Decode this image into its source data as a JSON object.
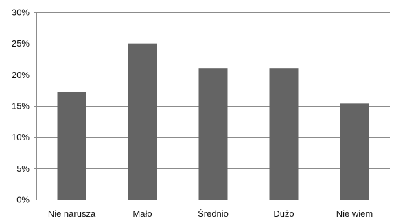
{
  "chart_data": {
    "type": "bar",
    "title": "",
    "xlabel": "",
    "ylabel": "",
    "categories": [
      "Nie narusza",
      "Mało",
      "Średnio",
      "Dużo",
      "Nie wiem"
    ],
    "values": [
      17.3,
      25.0,
      21.0,
      21.0,
      15.4
    ],
    "ylim": [
      0,
      30
    ],
    "yticks": [
      0,
      5,
      10,
      15,
      20,
      25,
      30
    ],
    "ytick_labels": [
      "0%",
      "5%",
      "10%",
      "15%",
      "20%",
      "25%",
      "30%"
    ],
    "grid": true,
    "legend": "none",
    "bar_color": "#646464",
    "grid_color": "#8c8c8c",
    "axis_color": "#8c8c8c"
  }
}
